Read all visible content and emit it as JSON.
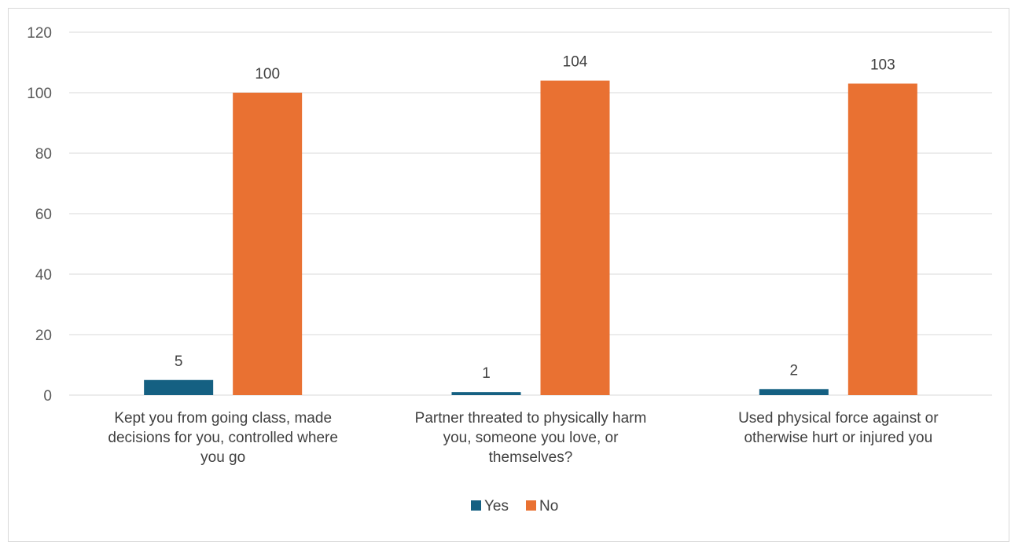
{
  "chart_data": {
    "type": "bar",
    "categories": [
      [
        "Kept you from going class, made",
        "decisions for you, controlled where",
        "you go"
      ],
      [
        "Partner threated to physically harm",
        "you, someone you love, or",
        "themselves?"
      ],
      [
        "Used physical force against or",
        "otherwise hurt or injured you"
      ]
    ],
    "series": [
      {
        "name": "Yes",
        "values": [
          5,
          1,
          2
        ],
        "color": "#156082"
      },
      {
        "name": "No",
        "values": [
          100,
          104,
          103
        ],
        "color": "#E97132"
      }
    ],
    "ylim": [
      0,
      120
    ],
    "yticks": [
      0,
      20,
      40,
      60,
      80,
      100,
      120
    ],
    "grid": true,
    "legend": "bottom",
    "data_labels": true
  }
}
